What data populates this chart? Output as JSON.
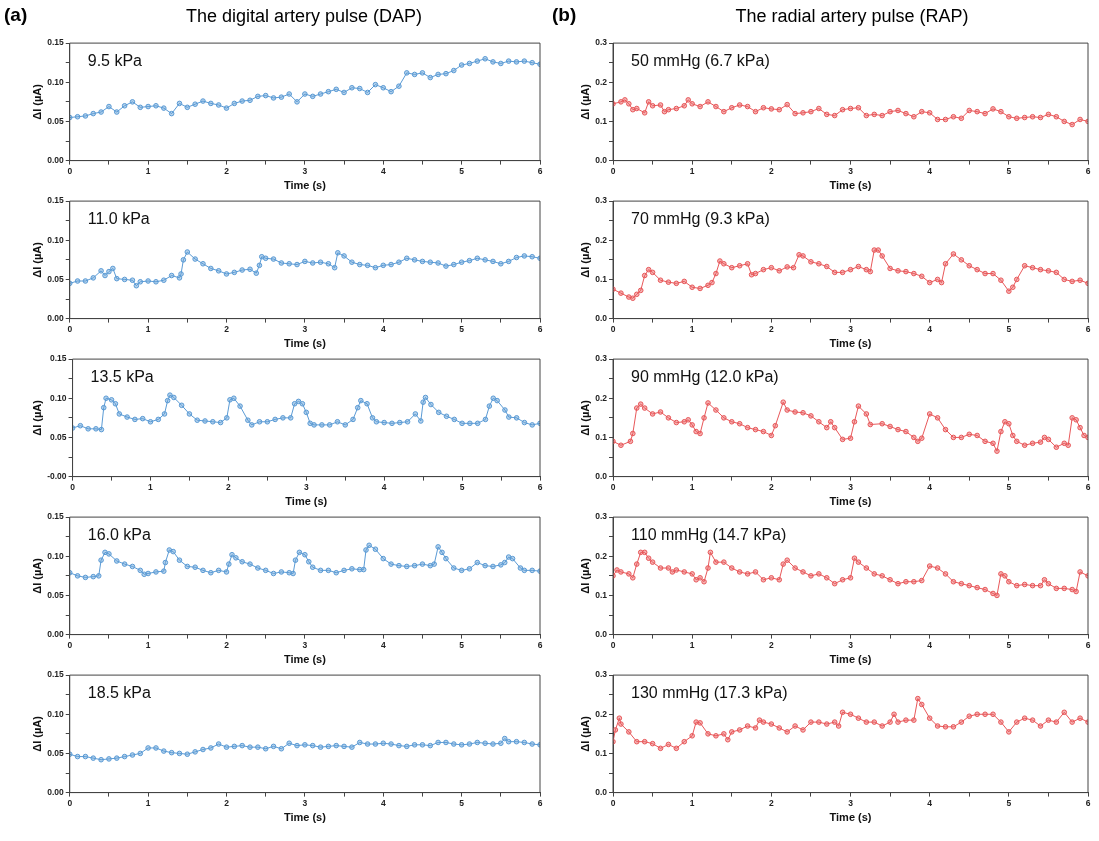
{
  "chart_data": [
    {
      "type": "line",
      "title": "The digital artery pulse (DAP)",
      "annotations": [
        "(a)",
        "9.5 kPa"
      ],
      "xlabel": "Time (s)",
      "ylabel": "ΔI (µA)",
      "marker": "circle",
      "grid": false,
      "xlim": [
        0,
        6
      ],
      "ylim": [
        0,
        0.15
      ],
      "xticks": [
        0,
        {
          "value": 0.5,
          "label": null
        },
        1,
        {
          "value": 1.5,
          "label": null
        },
        2,
        {
          "value": 2.5,
          "label": null
        },
        3,
        {
          "value": 3.5,
          "label": null
        },
        4,
        {
          "value": 4.5,
          "label": null
        },
        5,
        {
          "value": 5.5,
          "label": null
        },
        6
      ],
      "yticks": [
        {
          "value": 0,
          "label": "0.00"
        },
        {
          "value": 0.025,
          "label": null
        },
        0.05,
        {
          "value": 0.075,
          "label": null
        },
        {
          "value": 0.1,
          "label": "0.10"
        },
        {
          "value": 0.125,
          "label": null
        },
        0.15
      ],
      "x": [
        0,
        0.1,
        0.2,
        0.3,
        0.4,
        0.5,
        0.6,
        0.7,
        0.8,
        0.9,
        1,
        1.1,
        1.2,
        1.3,
        1.4,
        1.5,
        1.6,
        1.7,
        1.8,
        1.9,
        2,
        2.1,
        2.2,
        2.3,
        2.4,
        2.5,
        2.6,
        2.7,
        2.8,
        2.9,
        3,
        3.1,
        3.2,
        3.3,
        3.4,
        3.5,
        3.6,
        3.7,
        3.8,
        3.9,
        4,
        4.1,
        4.2,
        4.3,
        4.4,
        4.5,
        4.6,
        4.7,
        4.8,
        4.9,
        5,
        5.1,
        5.2,
        5.3,
        5.4,
        5.5,
        5.6,
        5.7,
        5.8,
        5.9,
        6
      ],
      "series": [
        {
          "color": "#5b9bd5",
          "values": [
            0.055,
            0.056,
            0.057,
            0.06,
            0.062,
            0.069,
            0.062,
            0.07,
            0.075,
            0.068,
            0.069,
            0.07,
            0.067,
            0.06,
            0.073,
            0.068,
            0.072,
            0.076,
            0.073,
            0.071,
            0.067,
            0.073,
            0.076,
            0.077,
            0.082,
            0.083,
            0.08,
            0.081,
            0.085,
            0.075,
            0.085,
            0.082,
            0.085,
            0.088,
            0.091,
            0.087,
            0.093,
            0.092,
            0.087,
            0.097,
            0.093,
            0.088,
            0.095,
            0.112,
            0.11,
            0.112,
            0.106,
            0.11,
            0.111,
            0.115,
            0.122,
            0.124,
            0.127,
            0.13,
            0.126,
            0.124,
            0.127,
            0.126,
            0.127,
            0.125,
            0.123
          ]
        }
      ]
    },
    {
      "type": "line",
      "annotations": [
        "11.0 kPa"
      ],
      "xlabel": "Time (s)",
      "ylabel": "ΔI (µA)",
      "marker": "circle",
      "grid": false,
      "xlim": [
        0,
        6
      ],
      "ylim": [
        0,
        0.15
      ],
      "xticks": [
        0,
        {
          "value": 0.5,
          "label": null
        },
        1,
        {
          "value": 1.5,
          "label": null
        },
        2,
        {
          "value": 2.5,
          "label": null
        },
        3,
        {
          "value": 3.5,
          "label": null
        },
        4,
        {
          "value": 4.5,
          "label": null
        },
        5,
        {
          "value": 5.5,
          "label": null
        },
        6
      ],
      "yticks": [
        {
          "value": 0,
          "label": "0.00"
        },
        {
          "value": 0.025,
          "label": null
        },
        0.05,
        {
          "value": 0.075,
          "label": null
        },
        {
          "value": 0.1,
          "label": "0.10"
        },
        {
          "value": 0.125,
          "label": null
        },
        0.15
      ],
      "x": [
        0,
        0.1,
        0.2,
        0.3,
        0.4,
        0.45,
        0.5,
        0.55,
        0.6,
        0.7,
        0.8,
        0.85,
        0.9,
        1,
        1.1,
        1.2,
        1.3,
        1.4,
        1.42,
        1.45,
        1.5,
        1.6,
        1.7,
        1.8,
        1.9,
        2,
        2.1,
        2.2,
        2.3,
        2.38,
        2.42,
        2.45,
        2.5,
        2.6,
        2.7,
        2.8,
        2.9,
        3,
        3.1,
        3.2,
        3.3,
        3.38,
        3.42,
        3.5,
        3.6,
        3.7,
        3.8,
        3.9,
        4,
        4.1,
        4.2,
        4.3,
        4.4,
        4.5,
        4.6,
        4.7,
        4.8,
        4.9,
        5,
        5.1,
        5.2,
        5.3,
        5.4,
        5.5,
        5.6,
        5.7,
        5.8,
        5.9,
        6
      ],
      "series": [
        {
          "color": "#5b9bd5",
          "values": [
            0.045,
            0.048,
            0.048,
            0.052,
            0.061,
            0.055,
            0.06,
            0.064,
            0.051,
            0.05,
            0.049,
            0.042,
            0.047,
            0.048,
            0.047,
            0.049,
            0.055,
            0.052,
            0.057,
            0.075,
            0.085,
            0.076,
            0.07,
            0.064,
            0.061,
            0.057,
            0.059,
            0.062,
            0.063,
            0.058,
            0.068,
            0.079,
            0.077,
            0.076,
            0.071,
            0.07,
            0.069,
            0.073,
            0.071,
            0.072,
            0.07,
            0.065,
            0.084,
            0.08,
            0.072,
            0.069,
            0.068,
            0.065,
            0.068,
            0.069,
            0.072,
            0.077,
            0.075,
            0.073,
            0.072,
            0.071,
            0.067,
            0.069,
            0.072,
            0.074,
            0.077,
            0.075,
            0.073,
            0.07,
            0.073,
            0.078,
            0.08,
            0.079,
            0.077
          ]
        }
      ]
    },
    {
      "type": "line",
      "annotations": [
        "13.5 kPa"
      ],
      "xlabel": "Time (s)",
      "ylabel": "ΔI (µA)",
      "marker": "circle",
      "grid": false,
      "xlim": [
        0,
        6
      ],
      "ylim": [
        0,
        0.15
      ],
      "xticks": [
        0,
        {
          "value": 0.5,
          "label": null
        },
        1,
        {
          "value": 1.5,
          "label": null
        },
        2,
        {
          "value": 2.5,
          "label": null
        },
        3,
        {
          "value": 3.5,
          "label": null
        },
        4,
        {
          "value": 4.5,
          "label": null
        },
        5,
        {
          "value": 5.5,
          "label": null
        },
        6
      ],
      "yticks": [
        {
          "value": 0,
          "label": "-0.00"
        },
        {
          "value": 0.025,
          "label": null
        },
        0.05,
        {
          "value": 0.075,
          "label": null
        },
        {
          "value": 0.1,
          "label": "0.10"
        },
        {
          "value": 0.125,
          "label": null
        },
        0.15
      ],
      "x": [
        0,
        0.1,
        0.2,
        0.3,
        0.37,
        0.4,
        0.43,
        0.5,
        0.55,
        0.6,
        0.7,
        0.8,
        0.9,
        1,
        1.1,
        1.18,
        1.22,
        1.25,
        1.3,
        1.4,
        1.5,
        1.6,
        1.7,
        1.8,
        1.9,
        1.98,
        2.02,
        2.07,
        2.15,
        2.25,
        2.3,
        2.4,
        2.5,
        2.6,
        2.7,
        2.8,
        2.85,
        2.9,
        2.95,
        3,
        3.05,
        3.1,
        3.2,
        3.3,
        3.4,
        3.5,
        3.6,
        3.66,
        3.7,
        3.78,
        3.85,
        3.9,
        4,
        4.1,
        4.2,
        4.3,
        4.4,
        4.47,
        4.5,
        4.53,
        4.6,
        4.7,
        4.8,
        4.9,
        5,
        5.1,
        5.2,
        5.3,
        5.35,
        5.4,
        5.45,
        5.55,
        5.6,
        5.7,
        5.8,
        5.9,
        6
      ],
      "series": [
        {
          "color": "#5b9bd5",
          "values": [
            0.062,
            0.065,
            0.061,
            0.061,
            0.06,
            0.088,
            0.1,
            0.098,
            0.093,
            0.08,
            0.076,
            0.073,
            0.074,
            0.07,
            0.073,
            0.08,
            0.097,
            0.104,
            0.101,
            0.091,
            0.08,
            0.072,
            0.071,
            0.07,
            0.069,
            0.075,
            0.098,
            0.1,
            0.09,
            0.072,
            0.066,
            0.07,
            0.07,
            0.073,
            0.075,
            0.075,
            0.093,
            0.096,
            0.093,
            0.082,
            0.068,
            0.066,
            0.066,
            0.066,
            0.07,
            0.066,
            0.073,
            0.088,
            0.097,
            0.093,
            0.075,
            0.07,
            0.069,
            0.068,
            0.069,
            0.07,
            0.08,
            0.071,
            0.095,
            0.101,
            0.092,
            0.082,
            0.077,
            0.073,
            0.068,
            0.068,
            0.068,
            0.073,
            0.09,
            0.1,
            0.097,
            0.085,
            0.076,
            0.075,
            0.069,
            0.066,
            0.068
          ]
        }
      ]
    },
    {
      "type": "line",
      "annotations": [
        "16.0 kPa"
      ],
      "xlabel": "Time (s)",
      "ylabel": "ΔI (µA)",
      "marker": "circle",
      "grid": false,
      "xlim": [
        0,
        6
      ],
      "ylim": [
        0,
        0.15
      ],
      "xticks": [
        0,
        {
          "value": 0.5,
          "label": null
        },
        1,
        {
          "value": 1.5,
          "label": null
        },
        2,
        {
          "value": 2.5,
          "label": null
        },
        3,
        {
          "value": 3.5,
          "label": null
        },
        4,
        {
          "value": 4.5,
          "label": null
        },
        5,
        {
          "value": 5.5,
          "label": null
        },
        6
      ],
      "yticks": [
        {
          "value": 0,
          "label": "0.00"
        },
        {
          "value": 0.025,
          "label": null
        },
        0.05,
        {
          "value": 0.075,
          "label": null
        },
        {
          "value": 0.1,
          "label": "0.10"
        },
        {
          "value": 0.125,
          "label": null
        },
        0.15
      ],
      "x": [
        0,
        0.1,
        0.2,
        0.3,
        0.37,
        0.4,
        0.45,
        0.5,
        0.6,
        0.7,
        0.8,
        0.9,
        0.95,
        1,
        1.1,
        1.2,
        1.22,
        1.27,
        1.32,
        1.4,
        1.5,
        1.6,
        1.7,
        1.8,
        1.9,
        2,
        2.03,
        2.07,
        2.12,
        2.2,
        2.3,
        2.4,
        2.5,
        2.6,
        2.7,
        2.8,
        2.85,
        2.88,
        2.93,
        3,
        3.05,
        3.1,
        3.2,
        3.3,
        3.4,
        3.5,
        3.6,
        3.7,
        3.75,
        3.78,
        3.82,
        3.9,
        4,
        4.1,
        4.2,
        4.3,
        4.4,
        4.5,
        4.6,
        4.65,
        4.7,
        4.75,
        4.8,
        4.9,
        5,
        5.1,
        5.2,
        5.3,
        5.4,
        5.5,
        5.55,
        5.6,
        5.65,
        5.75,
        5.8,
        5.9,
        6
      ],
      "series": [
        {
          "color": "#5b9bd5",
          "values": [
            0.079,
            0.075,
            0.073,
            0.074,
            0.075,
            0.095,
            0.105,
            0.103,
            0.094,
            0.09,
            0.087,
            0.082,
            0.077,
            0.078,
            0.08,
            0.081,
            0.092,
            0.108,
            0.106,
            0.095,
            0.087,
            0.086,
            0.082,
            0.079,
            0.082,
            0.08,
            0.09,
            0.102,
            0.098,
            0.093,
            0.09,
            0.085,
            0.082,
            0.078,
            0.08,
            0.079,
            0.078,
            0.095,
            0.105,
            0.102,
            0.093,
            0.086,
            0.082,
            0.082,
            0.079,
            0.082,
            0.084,
            0.083,
            0.083,
            0.108,
            0.114,
            0.109,
            0.097,
            0.09,
            0.088,
            0.087,
            0.088,
            0.09,
            0.088,
            0.09,
            0.112,
            0.105,
            0.097,
            0.085,
            0.082,
            0.084,
            0.092,
            0.088,
            0.087,
            0.089,
            0.092,
            0.099,
            0.097,
            0.085,
            0.082,
            0.082,
            0.081
          ]
        }
      ]
    },
    {
      "type": "line",
      "annotations": [
        "18.5 kPa"
      ],
      "xlabel": "Time (s)",
      "ylabel": "ΔI (µA)",
      "marker": "circle",
      "grid": false,
      "xlim": [
        0,
        6
      ],
      "ylim": [
        0,
        0.15
      ],
      "xticks": [
        0,
        {
          "value": 0.5,
          "label": null
        },
        1,
        {
          "value": 1.5,
          "label": null
        },
        2,
        {
          "value": 2.5,
          "label": null
        },
        3,
        {
          "value": 3.5,
          "label": null
        },
        4,
        {
          "value": 4.5,
          "label": null
        },
        5,
        {
          "value": 5.5,
          "label": null
        },
        6
      ],
      "yticks": [
        {
          "value": 0,
          "label": "0.00"
        },
        {
          "value": 0.025,
          "label": null
        },
        0.05,
        {
          "value": 0.075,
          "label": null
        },
        {
          "value": 0.1,
          "label": "0.10"
        },
        {
          "value": 0.125,
          "label": null
        },
        0.15
      ],
      "x": [
        0,
        0.1,
        0.2,
        0.3,
        0.4,
        0.5,
        0.6,
        0.7,
        0.8,
        0.9,
        1,
        1.1,
        1.2,
        1.3,
        1.4,
        1.5,
        1.6,
        1.7,
        1.8,
        1.9,
        2,
        2.1,
        2.2,
        2.3,
        2.4,
        2.5,
        2.6,
        2.7,
        2.8,
        2.9,
        3,
        3.1,
        3.2,
        3.3,
        3.4,
        3.5,
        3.6,
        3.7,
        3.8,
        3.9,
        4,
        4.1,
        4.2,
        4.3,
        4.4,
        4.5,
        4.6,
        4.7,
        4.8,
        4.9,
        5,
        5.1,
        5.2,
        5.3,
        5.4,
        5.5,
        5.55,
        5.6,
        5.7,
        5.8,
        5.9,
        6
      ],
      "series": [
        {
          "color": "#5b9bd5",
          "values": [
            0.049,
            0.046,
            0.046,
            0.044,
            0.042,
            0.043,
            0.044,
            0.046,
            0.048,
            0.05,
            0.057,
            0.057,
            0.053,
            0.051,
            0.05,
            0.049,
            0.052,
            0.055,
            0.057,
            0.062,
            0.058,
            0.059,
            0.06,
            0.058,
            0.058,
            0.056,
            0.059,
            0.056,
            0.063,
            0.06,
            0.061,
            0.06,
            0.058,
            0.059,
            0.06,
            0.059,
            0.058,
            0.064,
            0.062,
            0.062,
            0.063,
            0.062,
            0.06,
            0.059,
            0.061,
            0.061,
            0.06,
            0.064,
            0.064,
            0.062,
            0.061,
            0.062,
            0.064,
            0.063,
            0.062,
            0.063,
            0.069,
            0.065,
            0.065,
            0.064,
            0.062,
            0.061
          ]
        }
      ]
    },
    {
      "type": "line",
      "title": "The radial artery pulse (RAP)",
      "annotations": [
        "(b)",
        "50 mmHg (6.7 kPa)"
      ],
      "xlabel": "Time (s)",
      "ylabel": "ΔI (µA)",
      "marker": "circle",
      "grid": false,
      "xlim": [
        0,
        6
      ],
      "ylim": [
        0,
        0.3
      ],
      "xticks": [
        0,
        {
          "value": 0.5,
          "label": null
        },
        1,
        {
          "value": 1.5,
          "label": null
        },
        2,
        {
          "value": 2.5,
          "label": null
        },
        3,
        {
          "value": 3.5,
          "label": null
        },
        4,
        {
          "value": 4.5,
          "label": null
        },
        5,
        {
          "value": 5.5,
          "label": null
        },
        6
      ],
      "yticks": [
        {
          "value": 0,
          "label": "0.0"
        },
        {
          "value": 0.05,
          "label": null
        },
        0.1,
        {
          "value": 0.15,
          "label": null
        },
        0.2,
        {
          "value": 0.25,
          "label": null
        },
        0.3
      ],
      "x": [
        0,
        0.1,
        0.15,
        0.2,
        0.25,
        0.3,
        0.4,
        0.45,
        0.5,
        0.6,
        0.65,
        0.7,
        0.8,
        0.9,
        0.95,
        1,
        1.1,
        1.2,
        1.3,
        1.4,
        1.5,
        1.6,
        1.7,
        1.8,
        1.9,
        2,
        2.1,
        2.2,
        2.3,
        2.4,
        2.5,
        2.6,
        2.7,
        2.8,
        2.9,
        3,
        3.1,
        3.2,
        3.3,
        3.4,
        3.5,
        3.6,
        3.7,
        3.8,
        3.9,
        4,
        4.1,
        4.2,
        4.3,
        4.4,
        4.5,
        4.6,
        4.7,
        4.8,
        4.9,
        5,
        5.1,
        5.2,
        5.3,
        5.4,
        5.5,
        5.6,
        5.7,
        5.8,
        5.9,
        6
      ],
      "series": [
        {
          "color": "#e8585a",
          "values": [
            0.145,
            0.15,
            0.155,
            0.145,
            0.13,
            0.133,
            0.122,
            0.15,
            0.14,
            0.142,
            0.125,
            0.13,
            0.133,
            0.14,
            0.155,
            0.145,
            0.138,
            0.15,
            0.138,
            0.125,
            0.135,
            0.142,
            0.138,
            0.125,
            0.135,
            0.132,
            0.13,
            0.143,
            0.12,
            0.122,
            0.125,
            0.133,
            0.118,
            0.115,
            0.13,
            0.133,
            0.135,
            0.115,
            0.118,
            0.115,
            0.125,
            0.128,
            0.12,
            0.112,
            0.125,
            0.122,
            0.105,
            0.105,
            0.112,
            0.108,
            0.128,
            0.125,
            0.12,
            0.132,
            0.125,
            0.112,
            0.108,
            0.11,
            0.112,
            0.11,
            0.118,
            0.112,
            0.1,
            0.092,
            0.105,
            0.1
          ]
        }
      ]
    },
    {
      "type": "line",
      "annotations": [
        "70 mmHg (9.3 kPa)"
      ],
      "xlabel": "Time (s)",
      "ylabel": "ΔI (µA)",
      "marker": "circle",
      "grid": false,
      "xlim": [
        0,
        6
      ],
      "ylim": [
        0,
        0.3
      ],
      "xticks": [
        0,
        {
          "value": 0.5,
          "label": null
        },
        1,
        {
          "value": 1.5,
          "label": null
        },
        2,
        {
          "value": 2.5,
          "label": null
        },
        3,
        {
          "value": 3.5,
          "label": null
        },
        4,
        {
          "value": 4.5,
          "label": null
        },
        5,
        {
          "value": 5.5,
          "label": null
        },
        6
      ],
      "yticks": [
        {
          "value": 0,
          "label": "0.0"
        },
        {
          "value": 0.05,
          "label": null
        },
        0.1,
        {
          "value": 0.15,
          "label": null
        },
        0.2,
        {
          "value": 0.25,
          "label": null
        },
        0.3
      ],
      "x": [
        0,
        0.1,
        0.2,
        0.25,
        0.3,
        0.35,
        0.4,
        0.45,
        0.5,
        0.6,
        0.7,
        0.8,
        0.9,
        1,
        1.1,
        1.2,
        1.25,
        1.3,
        1.35,
        1.4,
        1.5,
        1.6,
        1.7,
        1.75,
        1.8,
        1.9,
        2,
        2.1,
        2.2,
        2.28,
        2.35,
        2.4,
        2.5,
        2.6,
        2.7,
        2.8,
        2.9,
        3,
        3.1,
        3.2,
        3.25,
        3.3,
        3.35,
        3.4,
        3.5,
        3.6,
        3.7,
        3.8,
        3.9,
        4,
        4.1,
        4.15,
        4.2,
        4.3,
        4.4,
        4.5,
        4.6,
        4.7,
        4.8,
        4.9,
        5,
        5.05,
        5.1,
        5.2,
        5.3,
        5.4,
        5.5,
        5.6,
        5.7,
        5.8,
        5.9,
        6
      ],
      "series": [
        {
          "color": "#e8585a",
          "values": [
            0.075,
            0.065,
            0.055,
            0.052,
            0.062,
            0.072,
            0.11,
            0.125,
            0.118,
            0.098,
            0.093,
            0.09,
            0.095,
            0.08,
            0.077,
            0.085,
            0.092,
            0.115,
            0.147,
            0.14,
            0.13,
            0.135,
            0.14,
            0.112,
            0.115,
            0.125,
            0.13,
            0.122,
            0.132,
            0.13,
            0.163,
            0.16,
            0.145,
            0.14,
            0.133,
            0.118,
            0.118,
            0.125,
            0.133,
            0.125,
            0.12,
            0.175,
            0.175,
            0.16,
            0.128,
            0.122,
            0.12,
            0.115,
            0.108,
            0.092,
            0.1,
            0.092,
            0.14,
            0.165,
            0.15,
            0.135,
            0.125,
            0.115,
            0.115,
            0.098,
            0.07,
            0.08,
            0.1,
            0.135,
            0.13,
            0.125,
            0.122,
            0.118,
            0.1,
            0.095,
            0.098,
            0.09
          ]
        }
      ]
    },
    {
      "type": "line",
      "annotations": [
        "90 mmHg (12.0 kPa)"
      ],
      "xlabel": "Time (s)",
      "ylabel": "ΔI (µA)",
      "marker": "circle",
      "grid": false,
      "xlim": [
        0,
        6
      ],
      "ylim": [
        0,
        0.3
      ],
      "xticks": [
        0,
        {
          "value": 0.5,
          "label": null
        },
        1,
        {
          "value": 1.5,
          "label": null
        },
        2,
        {
          "value": 2.5,
          "label": null
        },
        3,
        {
          "value": 3.5,
          "label": null
        },
        4,
        {
          "value": 4.5,
          "label": null
        },
        5,
        {
          "value": 5.5,
          "label": null
        },
        6
      ],
      "yticks": [
        {
          "value": 0,
          "label": "0.0"
        },
        {
          "value": 0.05,
          "label": null
        },
        0.1,
        {
          "value": 0.15,
          "label": null
        },
        0.2,
        {
          "value": 0.25,
          "label": null
        },
        0.3
      ],
      "x": [
        0,
        0.1,
        0.22,
        0.25,
        0.3,
        0.35,
        0.4,
        0.5,
        0.6,
        0.7,
        0.8,
        0.9,
        0.95,
        1,
        1.05,
        1.1,
        1.15,
        1.2,
        1.3,
        1.4,
        1.5,
        1.6,
        1.7,
        1.8,
        1.9,
        2,
        2.05,
        2.15,
        2.2,
        2.3,
        2.4,
        2.5,
        2.6,
        2.7,
        2.75,
        2.8,
        2.9,
        3,
        3.05,
        3.1,
        3.2,
        3.25,
        3.4,
        3.5,
        3.6,
        3.7,
        3.8,
        3.85,
        3.9,
        4,
        4.1,
        4.2,
        4.3,
        4.4,
        4.5,
        4.6,
        4.7,
        4.8,
        4.85,
        4.9,
        4.95,
        5,
        5.05,
        5.1,
        5.2,
        5.3,
        5.4,
        5.45,
        5.5,
        5.6,
        5.7,
        5.75,
        5.8,
        5.85,
        5.9,
        5.95,
        6
      ],
      "series": [
        {
          "color": "#e8585a",
          "values": [
            0.09,
            0.08,
            0.09,
            0.11,
            0.175,
            0.185,
            0.175,
            0.16,
            0.165,
            0.15,
            0.138,
            0.14,
            0.145,
            0.132,
            0.115,
            0.11,
            0.15,
            0.188,
            0.17,
            0.15,
            0.14,
            0.135,
            0.125,
            0.12,
            0.115,
            0.105,
            0.13,
            0.19,
            0.17,
            0.165,
            0.163,
            0.155,
            0.14,
            0.125,
            0.14,
            0.125,
            0.095,
            0.098,
            0.14,
            0.18,
            0.16,
            0.133,
            0.135,
            0.128,
            0.12,
            0.115,
            0.1,
            0.09,
            0.098,
            0.16,
            0.15,
            0.12,
            0.1,
            0.1,
            0.108,
            0.105,
            0.09,
            0.085,
            0.065,
            0.115,
            0.14,
            0.135,
            0.105,
            0.09,
            0.08,
            0.085,
            0.088,
            0.1,
            0.095,
            0.075,
            0.085,
            0.08,
            0.15,
            0.145,
            0.125,
            0.105,
            0.1
          ]
        }
      ]
    },
    {
      "type": "line",
      "annotations": [
        "110 mmHg (14.7 kPa)"
      ],
      "xlabel": "Time (s)",
      "ylabel": "ΔI (µA)",
      "marker": "circle",
      "grid": false,
      "xlim": [
        0,
        6
      ],
      "ylim": [
        0,
        0.3
      ],
      "xticks": [
        0,
        {
          "value": 0.5,
          "label": null
        },
        1,
        {
          "value": 1.5,
          "label": null
        },
        2,
        {
          "value": 2.5,
          "label": null
        },
        3,
        {
          "value": 3.5,
          "label": null
        },
        4,
        {
          "value": 4.5,
          "label": null
        },
        5,
        {
          "value": 5.5,
          "label": null
        },
        6
      ],
      "yticks": [
        {
          "value": 0,
          "label": "0.0"
        },
        {
          "value": 0.05,
          "label": null
        },
        0.1,
        {
          "value": 0.15,
          "label": null
        },
        0.2,
        {
          "value": 0.25,
          "label": null
        },
        0.3
      ],
      "x": [
        0,
        0.05,
        0.1,
        0.2,
        0.25,
        0.3,
        0.35,
        0.4,
        0.45,
        0.5,
        0.6,
        0.7,
        0.75,
        0.8,
        0.9,
        1,
        1.05,
        1.1,
        1.15,
        1.2,
        1.23,
        1.3,
        1.4,
        1.5,
        1.6,
        1.7,
        1.8,
        1.9,
        2,
        2.1,
        2.15,
        2.2,
        2.3,
        2.4,
        2.5,
        2.6,
        2.7,
        2.8,
        2.9,
        3,
        3.05,
        3.1,
        3.2,
        3.3,
        3.4,
        3.5,
        3.6,
        3.7,
        3.8,
        3.9,
        4,
        4.1,
        4.2,
        4.3,
        4.4,
        4.5,
        4.6,
        4.7,
        4.8,
        4.85,
        4.9,
        4.95,
        5,
        5.1,
        5.2,
        5.3,
        5.4,
        5.45,
        5.5,
        5.6,
        5.7,
        5.8,
        5.85,
        5.9,
        6
      ],
      "series": [
        {
          "color": "#e8585a",
          "values": [
            0.15,
            0.165,
            0.16,
            0.155,
            0.145,
            0.18,
            0.21,
            0.21,
            0.195,
            0.185,
            0.17,
            0.17,
            0.16,
            0.165,
            0.16,
            0.155,
            0.14,
            0.145,
            0.135,
            0.17,
            0.21,
            0.185,
            0.185,
            0.17,
            0.16,
            0.155,
            0.16,
            0.14,
            0.145,
            0.14,
            0.18,
            0.19,
            0.17,
            0.16,
            0.15,
            0.155,
            0.145,
            0.13,
            0.14,
            0.145,
            0.195,
            0.185,
            0.17,
            0.155,
            0.15,
            0.14,
            0.13,
            0.135,
            0.135,
            0.138,
            0.175,
            0.17,
            0.155,
            0.135,
            0.13,
            0.125,
            0.12,
            0.115,
            0.105,
            0.1,
            0.155,
            0.15,
            0.135,
            0.125,
            0.128,
            0.125,
            0.125,
            0.14,
            0.13,
            0.118,
            0.118,
            0.115,
            0.11,
            0.16,
            0.15
          ]
        }
      ]
    },
    {
      "type": "line",
      "annotations": [
        "130 mmHg (17.3 kPa)"
      ],
      "xlabel": "Time (s)",
      "ylabel": "ΔI (µA)",
      "marker": "circle",
      "grid": false,
      "xlim": [
        0,
        6
      ],
      "ylim": [
        0,
        0.3
      ],
      "xticks": [
        0,
        {
          "value": 0.5,
          "label": null
        },
        1,
        {
          "value": 1.5,
          "label": null
        },
        2,
        {
          "value": 2.5,
          "label": null
        },
        3,
        {
          "value": 3.5,
          "label": null
        },
        4,
        {
          "value": 4.5,
          "label": null
        },
        5,
        {
          "value": 5.5,
          "label": null
        },
        6
      ],
      "yticks": [
        {
          "value": 0,
          "label": "0.0"
        },
        {
          "value": 0.05,
          "label": null
        },
        0.1,
        {
          "value": 0.15,
          "label": null
        },
        0.2,
        {
          "value": 0.25,
          "label": null
        },
        0.3
      ],
      "x": [
        0,
        0.03,
        0.08,
        0.1,
        0.2,
        0.3,
        0.4,
        0.5,
        0.6,
        0.7,
        0.8,
        0.9,
        1,
        1.05,
        1.1,
        1.2,
        1.3,
        1.4,
        1.45,
        1.5,
        1.6,
        1.7,
        1.8,
        1.85,
        1.9,
        2,
        2.1,
        2.2,
        2.3,
        2.4,
        2.5,
        2.6,
        2.7,
        2.8,
        2.85,
        2.9,
        3,
        3.1,
        3.2,
        3.3,
        3.4,
        3.5,
        3.55,
        3.6,
        3.7,
        3.8,
        3.85,
        3.9,
        4,
        4.1,
        4.2,
        4.3,
        4.4,
        4.5,
        4.6,
        4.7,
        4.8,
        4.9,
        5,
        5.1,
        5.2,
        5.3,
        5.4,
        5.5,
        5.6,
        5.7,
        5.8,
        5.9,
        6
      ],
      "series": [
        {
          "color": "#e8585a",
          "values": [
            0.13,
            0.16,
            0.19,
            0.175,
            0.155,
            0.13,
            0.13,
            0.125,
            0.113,
            0.123,
            0.113,
            0.13,
            0.145,
            0.18,
            0.178,
            0.15,
            0.145,
            0.15,
            0.135,
            0.155,
            0.16,
            0.17,
            0.165,
            0.185,
            0.18,
            0.175,
            0.165,
            0.155,
            0.17,
            0.16,
            0.18,
            0.18,
            0.175,
            0.18,
            0.17,
            0.205,
            0.2,
            0.19,
            0.18,
            0.18,
            0.17,
            0.18,
            0.2,
            0.18,
            0.185,
            0.185,
            0.24,
            0.225,
            0.19,
            0.17,
            0.168,
            0.168,
            0.18,
            0.195,
            0.2,
            0.2,
            0.2,
            0.18,
            0.155,
            0.18,
            0.19,
            0.185,
            0.17,
            0.185,
            0.18,
            0.205,
            0.18,
            0.19,
            0.18
          ]
        }
      ]
    }
  ]
}
